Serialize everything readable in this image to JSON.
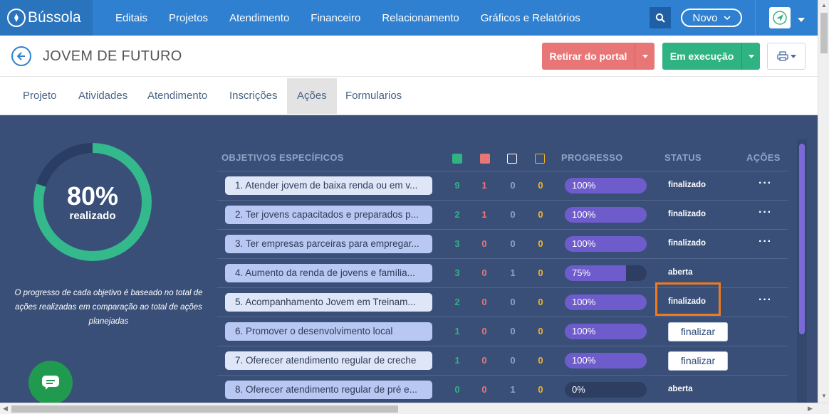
{
  "app": {
    "brand": "Bússola"
  },
  "nav": {
    "items": [
      "Editais",
      "Projetos",
      "Atendimento",
      "Financeiro",
      "Relacionamento",
      "Gráficos e Relatórios"
    ],
    "novo_label": "Novo"
  },
  "header": {
    "title": "JOVEM DE FUTURO",
    "retirar_label": "Retirar do portal",
    "execucao_label": "Em execução"
  },
  "tabs": [
    "Projeto",
    "Atividades",
    "Atendimento",
    "Inscrições",
    "Ações",
    "Formularios"
  ],
  "active_tab": "Ações",
  "summary": {
    "percent": "80%",
    "percent_value": 0.8,
    "label": "realizado",
    "note": "O progresso de cada objetivo é baseado no total de ações realizadas em comparação ao total de ações planejadas"
  },
  "table": {
    "headers": {
      "objetivos": "OBJETIVOS ESPECÍFICOS",
      "progresso": "PROGRESSO",
      "status": "STATUS",
      "acoes": "AÇÕES"
    },
    "legend_colors": [
      "#2fb383",
      "#e87676",
      "#ffffff",
      "#f0b429"
    ],
    "rows": [
      {
        "objetivo": "1. Atender jovem de baixa renda ou em v...",
        "green": "9",
        "red": "1",
        "white": "0",
        "yellow": "0",
        "progress": "100%",
        "progress_value": 1.0,
        "status": "finalizado",
        "action": "dots"
      },
      {
        "objetivo": "2. Ter jovens capacitados e preparados p...",
        "green": "2",
        "red": "1",
        "white": "0",
        "yellow": "0",
        "progress": "100%",
        "progress_value": 1.0,
        "status": "finalizado",
        "action": "dots"
      },
      {
        "objetivo": "3. Ter empresas parceiras para empregar...",
        "green": "3",
        "red": "0",
        "white": "0",
        "yellow": "0",
        "progress": "100%",
        "progress_value": 1.0,
        "status": "finalizado",
        "action": "dots"
      },
      {
        "objetivo": "4. Aumento da renda de jovens e família...",
        "green": "3",
        "red": "0",
        "white": "1",
        "yellow": "0",
        "progress": "75%",
        "progress_value": 0.75,
        "status": "aberta",
        "action": "none"
      },
      {
        "objetivo": "5. Acompanhamento Jovem em Treinam...",
        "green": "2",
        "red": "0",
        "white": "0",
        "yellow": "0",
        "progress": "100%",
        "progress_value": 1.0,
        "status": "finalizado",
        "action": "dots"
      },
      {
        "objetivo": "6. Promover o desenvolvimento local",
        "green": "1",
        "red": "0",
        "white": "0",
        "yellow": "0",
        "progress": "100%",
        "progress_value": 1.0,
        "status": "finalizar",
        "action": "button"
      },
      {
        "objetivo": "7. Oferecer atendimento regular de creche",
        "green": "1",
        "red": "0",
        "white": "0",
        "yellow": "0",
        "progress": "100%",
        "progress_value": 1.0,
        "status": "finalizar",
        "action": "button"
      },
      {
        "objetivo": "8. Oferecer atendimento regular de pré e...",
        "green": "0",
        "red": "0",
        "white": "1",
        "yellow": "0",
        "progress": "0%",
        "progress_value": 0.0,
        "status": "aberta",
        "action": "none"
      }
    ]
  }
}
